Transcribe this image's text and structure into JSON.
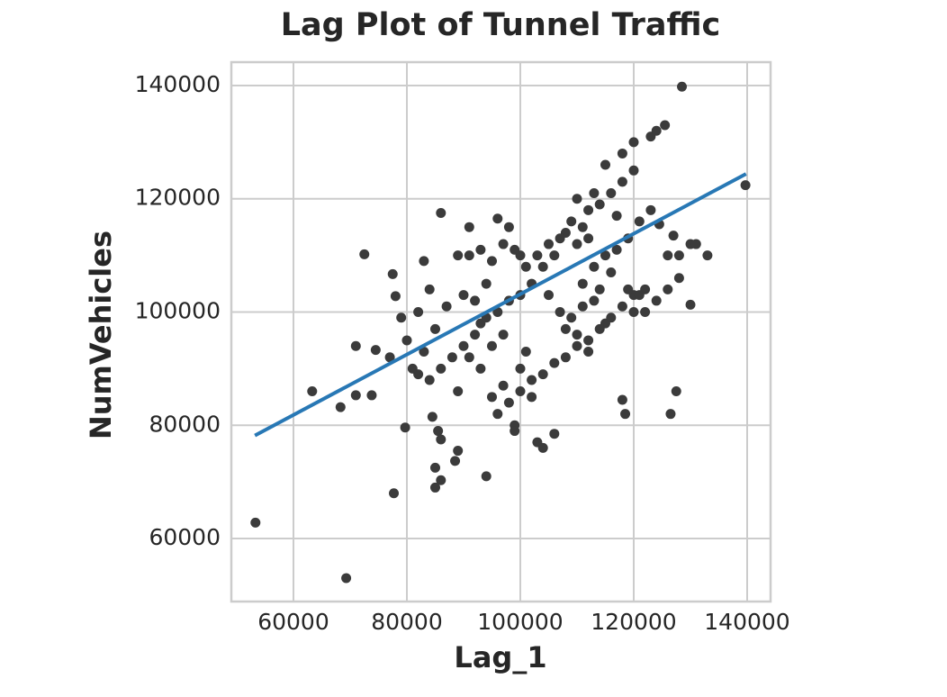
{
  "chart_data": {
    "type": "scatter",
    "title": "Lag Plot of Tunnel Traffic",
    "x_label": "Lag_1",
    "y_label": "NumVehicles",
    "xlim": [
      49048,
      144127
    ],
    "ylim": [
      48870,
      144134
    ],
    "xticks": [
      60000,
      80000,
      100000,
      120000,
      140000
    ],
    "yticks": [
      60000,
      80000,
      100000,
      120000,
      140000
    ],
    "grid": true,
    "color": "#3b3b3b",
    "x": [
      53300,
      69300,
      128500,
      139700,
      63300,
      68300,
      71000,
      73800,
      71000,
      72500,
      74500,
      77000,
      77700,
      79700,
      77500,
      78000,
      79000,
      80000,
      82000,
      83000,
      84000,
      85000,
      85000,
      86000,
      86000,
      84500,
      85500,
      86000,
      88500,
      89000,
      94000,
      89000,
      90000,
      91000,
      92000,
      93000,
      94000,
      95000,
      96000,
      98000,
      99000,
      99000,
      100000,
      101000,
      103000,
      104000,
      106000,
      107000,
      108000,
      110000,
      112000,
      115000,
      118000,
      118500,
      120000,
      122000,
      124500,
      126000,
      127000,
      128000,
      130000,
      131000,
      133000,
      130000,
      127500,
      126500,
      123000,
      124000,
      125500,
      120000,
      118000,
      115000,
      113000,
      110000,
      112000,
      114000,
      116000,
      118000,
      120000,
      117000,
      108000,
      106000,
      104000,
      102000,
      100000,
      98000,
      96000,
      94000,
      92000,
      90000,
      88000,
      86000,
      84000,
      82000,
      100000,
      102000,
      104000,
      106000,
      108000,
      110000,
      112000,
      114000,
      116000,
      118000,
      120000,
      122000,
      124000,
      126000,
      128000,
      113000,
      115000,
      117000,
      119000,
      121000,
      123000,
      110000,
      109000,
      111000,
      112000,
      107000,
      105000,
      103000,
      101000,
      99000,
      97000,
      95000,
      93000,
      91000,
      89000,
      87000,
      85000,
      83000,
      81000,
      96000,
      98000,
      100000,
      102000,
      97000,
      93000,
      91000,
      95000,
      97000,
      105000,
      111000,
      114000,
      116000,
      119000,
      121000,
      109000,
      111000,
      113000
    ],
    "values": [
      62800,
      53000,
      139800,
      122400,
      86000,
      83200,
      85300,
      85300,
      94000,
      110200,
      93300,
      92000,
      68000,
      79600,
      106700,
      102800,
      99000,
      95000,
      100000,
      109000,
      104000,
      72500,
      69000,
      70300,
      117500,
      81500,
      79000,
      77500,
      73700,
      75500,
      71000,
      86000,
      103000,
      115000,
      102000,
      98000,
      105000,
      85000,
      116500,
      115000,
      80000,
      79000,
      110000,
      93000,
      77000,
      76000,
      78500,
      100000,
      97000,
      96000,
      93000,
      98000,
      84500,
      82000,
      103000,
      104000,
      115500,
      110000,
      113500,
      110000,
      112000,
      112000,
      110000,
      101300,
      86000,
      82000,
      131000,
      132000,
      133000,
      130000,
      128000,
      126000,
      121000,
      120000,
      118000,
      119000,
      121000,
      123000,
      125000,
      117000,
      114000,
      110000,
      108000,
      105000,
      103000,
      102000,
      100000,
      99000,
      96000,
      94000,
      92000,
      90000,
      88000,
      89000,
      90000,
      88000,
      89000,
      91000,
      92000,
      94000,
      95000,
      97000,
      99000,
      101000,
      100000,
      100000,
      102000,
      104000,
      106000,
      108000,
      110000,
      111000,
      113000,
      116000,
      118000,
      112000,
      116000,
      115000,
      113000,
      113000,
      112000,
      110000,
      108000,
      111000,
      112000,
      109000,
      111000,
      110000,
      110000,
      101000,
      97000,
      93000,
      90000,
      82000,
      84000,
      86000,
      85000,
      87000,
      90000,
      92000,
      94000,
      96000,
      103000,
      105000,
      104000,
      107000,
      104000,
      103000,
      99000,
      101000,
      102000
    ],
    "fit_line": {
      "color": "#2878b5",
      "x": [
        53200,
        139800
      ],
      "values": [
        78200,
        124400
      ]
    }
  }
}
